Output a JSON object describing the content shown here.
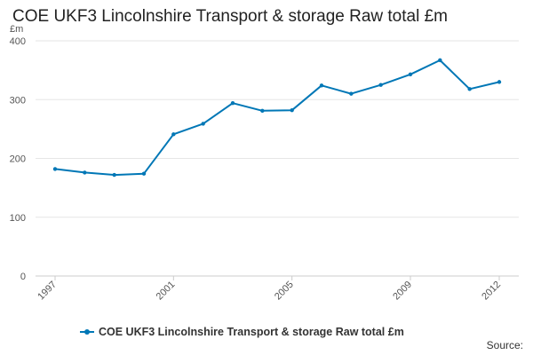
{
  "title": "COE UKF3 Lincolnshire Transport & storage Raw total £m",
  "source_label": "Source:",
  "colors": {
    "series": "#0077b6",
    "grid": "#e6e6e6",
    "axis_text": "#555555",
    "title": "#222222"
  },
  "chart_data": {
    "type": "line",
    "title": "COE UKF3 Lincolnshire Transport & storage Raw total £m",
    "xlabel": "",
    "ylabel": "£m",
    "x": [
      1997,
      1998,
      1999,
      2000,
      2001,
      2002,
      2003,
      2004,
      2005,
      2006,
      2007,
      2008,
      2009,
      2010,
      2011,
      2012
    ],
    "x_tick_labels": [
      "1997",
      "2001",
      "2005",
      "2009",
      "2012"
    ],
    "y_ticks": [
      0,
      100,
      200,
      300,
      400
    ],
    "ylim": [
      0,
      400
    ],
    "grid": true,
    "legend": "bottom",
    "series": [
      {
        "name": "COE UKF3 Lincolnshire Transport & storage Raw total £m",
        "values": [
          182,
          176,
          172,
          174,
          241,
          259,
          294,
          281,
          282,
          324,
          310,
          325,
          343,
          367,
          318,
          330
        ]
      }
    ]
  }
}
